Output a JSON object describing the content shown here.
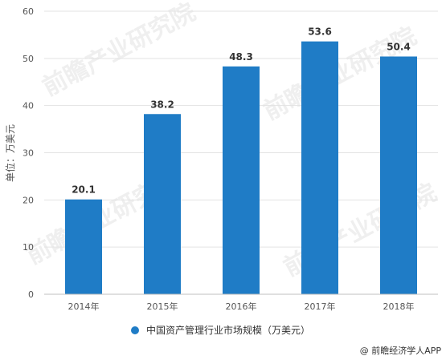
{
  "chart_data": {
    "type": "bar",
    "categories": [
      "2014年",
      "2015年",
      "2016年",
      "2017年",
      "2018年"
    ],
    "series": [
      {
        "name": "中国资产管理行业市场规模（万美元）",
        "values": [
          20.1,
          38.2,
          48.3,
          53.6,
          50.4
        ],
        "color": "#1f7cc6"
      }
    ],
    "value_labels": [
      "20.1",
      "38.2",
      "48.3",
      "53.6",
      "50.4"
    ],
    "ylabel": "单位：万美元",
    "ylim": [
      0,
      60
    ],
    "yticks": [
      0,
      10,
      20,
      30,
      40,
      50,
      60
    ],
    "grid": true,
    "legend_position": "bottom"
  },
  "credit": "@ 前瞻经济学人APP",
  "watermark": "前瞻产业研究院",
  "colors": {
    "bar": "#1f7cc6",
    "grid": "#e3e3e3",
    "axis": "#bfbfbf"
  }
}
